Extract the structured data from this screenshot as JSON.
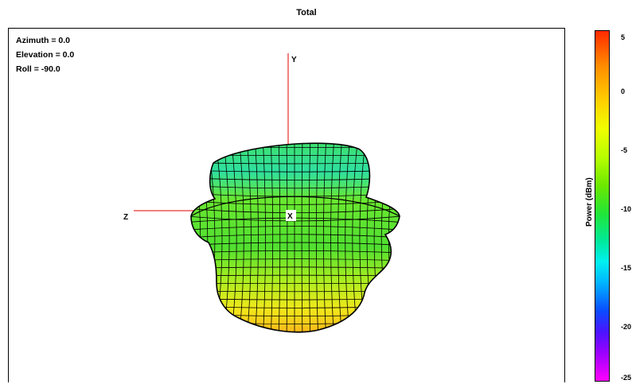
{
  "chart_data": {
    "type": "surface3d",
    "title": "Total",
    "view": {
      "azimuth": "Azimuth = 0.0",
      "elevation": "Elevation = 0.0",
      "roll": "Roll = -90.0"
    },
    "axes": {
      "y_label": "Y",
      "z_label": "Z",
      "x_label": "X"
    },
    "colorbar": {
      "label": "Power  (dBm)",
      "ticks": [
        "5",
        "0",
        "-5",
        "-10",
        "-15",
        "-20",
        "-25"
      ],
      "range": [
        -25,
        6
      ]
    }
  }
}
